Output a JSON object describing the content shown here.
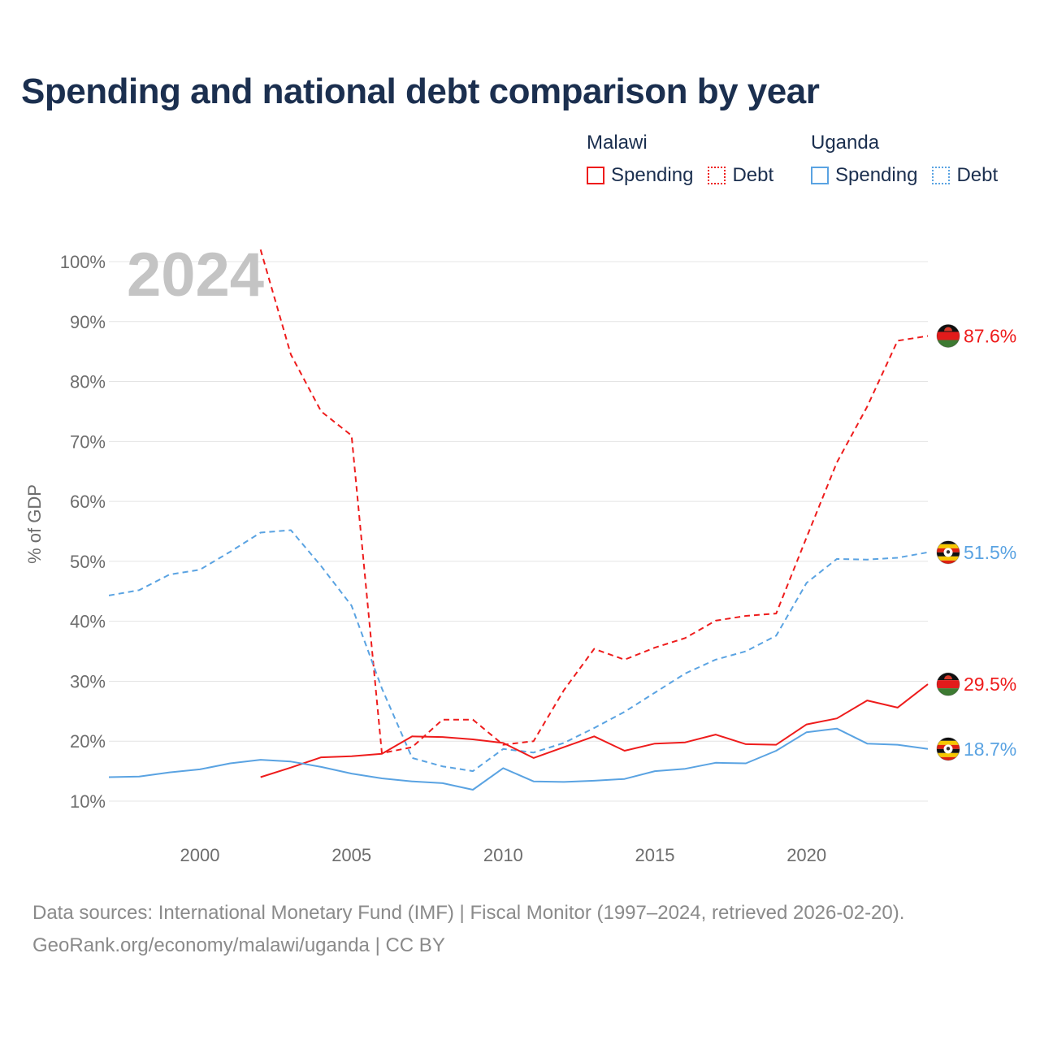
{
  "title": "Spending and national debt comparison by year",
  "legend": {
    "groups": [
      {
        "country": "Malawi",
        "items": [
          {
            "label": "Spending"
          },
          {
            "label": "Debt"
          }
        ]
      },
      {
        "country": "Uganda",
        "items": [
          {
            "label": "Spending"
          },
          {
            "label": "Debt"
          }
        ]
      }
    ]
  },
  "colors": {
    "malawi": "#ee1c1c",
    "uganda": "#5aa3e2"
  },
  "icons": {
    "malawi_flag": "malawi-flag-icon",
    "uganda_flag": "uganda-flag-icon"
  },
  "footer": {
    "line1": "Data sources: International Monetary Fund (IMF) | Fiscal Monitor (1997–2024, retrieved 2026-02-20).",
    "line2": "GeoRank.org/economy/malawi/uganda | CC BY"
  },
  "chart_data": {
    "type": "line",
    "title": "Spending and national debt comparison by year",
    "year_label": "2024",
    "xlabel": "",
    "ylabel": "% of GDP",
    "xlim": [
      1997,
      2024
    ],
    "ylim": [
      10,
      100
    ],
    "xticks": [
      2000,
      2005,
      2010,
      2015,
      2020
    ],
    "yticks": [
      10,
      20,
      30,
      40,
      50,
      60,
      70,
      80,
      90,
      100
    ],
    "ytick_labels": [
      "10%",
      "20%",
      "30%",
      "40%",
      "50%",
      "60%",
      "70%",
      "80%",
      "90%",
      "100%"
    ],
    "grid": true,
    "series": [
      {
        "name": "Malawi Debt",
        "country": "Malawi",
        "metric": "Debt",
        "style": "dashed",
        "color": "#ee1c1c",
        "points": [
          [
            2002,
            102
          ],
          [
            2003,
            84.5
          ],
          [
            2004,
            75
          ],
          [
            2005,
            71
          ],
          [
            2006,
            18
          ],
          [
            2007,
            19
          ],
          [
            2008,
            23.6
          ],
          [
            2009,
            23.6
          ],
          [
            2010,
            19.4
          ],
          [
            2011,
            20
          ],
          [
            2012,
            28.5
          ],
          [
            2013,
            35.4
          ],
          [
            2014,
            33.6
          ],
          [
            2015,
            35.6
          ],
          [
            2016,
            37.2
          ],
          [
            2017,
            40.1
          ],
          [
            2018,
            40.9
          ],
          [
            2019,
            41.3
          ],
          [
            2020,
            54
          ],
          [
            2021,
            66.5
          ],
          [
            2022,
            75.8
          ],
          [
            2023,
            86.8
          ],
          [
            2024,
            87.6
          ]
        ],
        "end_label": "87.6%"
      },
      {
        "name": "Uganda Debt",
        "country": "Uganda",
        "metric": "Debt",
        "style": "dashed",
        "color": "#5aa3e2",
        "points": [
          [
            1997,
            44.3
          ],
          [
            1998,
            45.2
          ],
          [
            1999,
            47.8
          ],
          [
            2000,
            48.6
          ],
          [
            2001,
            51.6
          ],
          [
            2002,
            54.8
          ],
          [
            2003,
            55.2
          ],
          [
            2004,
            49.2
          ],
          [
            2005,
            42.6
          ],
          [
            2006,
            28.8
          ],
          [
            2007,
            17.2
          ],
          [
            2008,
            15.8
          ],
          [
            2009,
            15
          ],
          [
            2010,
            18.7
          ],
          [
            2011,
            18.1
          ],
          [
            2012,
            19.7
          ],
          [
            2013,
            22.2
          ],
          [
            2014,
            24.9
          ],
          [
            2015,
            28.1
          ],
          [
            2016,
            31.3
          ],
          [
            2017,
            33.6
          ],
          [
            2018,
            35
          ],
          [
            2019,
            37.6
          ],
          [
            2020,
            46.4
          ],
          [
            2021,
            50.4
          ],
          [
            2022,
            50.3
          ],
          [
            2023,
            50.6
          ],
          [
            2024,
            51.5
          ]
        ],
        "end_label": "51.5%"
      },
      {
        "name": "Malawi Spending",
        "country": "Malawi",
        "metric": "Spending",
        "style": "solid",
        "color": "#ee1c1c",
        "points": [
          [
            2002,
            14
          ],
          [
            2003,
            15.6
          ],
          [
            2004,
            17.3
          ],
          [
            2005,
            17.5
          ],
          [
            2006,
            17.9
          ],
          [
            2007,
            20.8
          ],
          [
            2008,
            20.7
          ],
          [
            2009,
            20.3
          ],
          [
            2010,
            19.7
          ],
          [
            2011,
            17.2
          ],
          [
            2012,
            19
          ],
          [
            2013,
            20.8
          ],
          [
            2014,
            18.4
          ],
          [
            2015,
            19.6
          ],
          [
            2016,
            19.8
          ],
          [
            2017,
            21.1
          ],
          [
            2018,
            19.5
          ],
          [
            2019,
            19.4
          ],
          [
            2020,
            22.8
          ],
          [
            2021,
            23.8
          ],
          [
            2022,
            26.8
          ],
          [
            2023,
            25.6
          ],
          [
            2024,
            29.5
          ]
        ],
        "end_label": "29.5%"
      },
      {
        "name": "Uganda Spending",
        "country": "Uganda",
        "metric": "Spending",
        "style": "solid",
        "color": "#5aa3e2",
        "points": [
          [
            1997,
            14
          ],
          [
            1998,
            14.1
          ],
          [
            1999,
            14.8
          ],
          [
            2000,
            15.3
          ],
          [
            2001,
            16.3
          ],
          [
            2002,
            16.9
          ],
          [
            2003,
            16.6
          ],
          [
            2004,
            15.7
          ],
          [
            2005,
            14.6
          ],
          [
            2006,
            13.8
          ],
          [
            2007,
            13.3
          ],
          [
            2008,
            13
          ],
          [
            2009,
            11.9
          ],
          [
            2010,
            15.5
          ],
          [
            2011,
            13.3
          ],
          [
            2012,
            13.2
          ],
          [
            2013,
            13.4
          ],
          [
            2014,
            13.7
          ],
          [
            2015,
            15
          ],
          [
            2016,
            15.4
          ],
          [
            2017,
            16.4
          ],
          [
            2018,
            16.3
          ],
          [
            2019,
            18.4
          ],
          [
            2020,
            21.5
          ],
          [
            2021,
            22.1
          ],
          [
            2022,
            19.6
          ],
          [
            2023,
            19.4
          ],
          [
            2024,
            18.7
          ]
        ],
        "end_label": "18.7%"
      }
    ]
  }
}
